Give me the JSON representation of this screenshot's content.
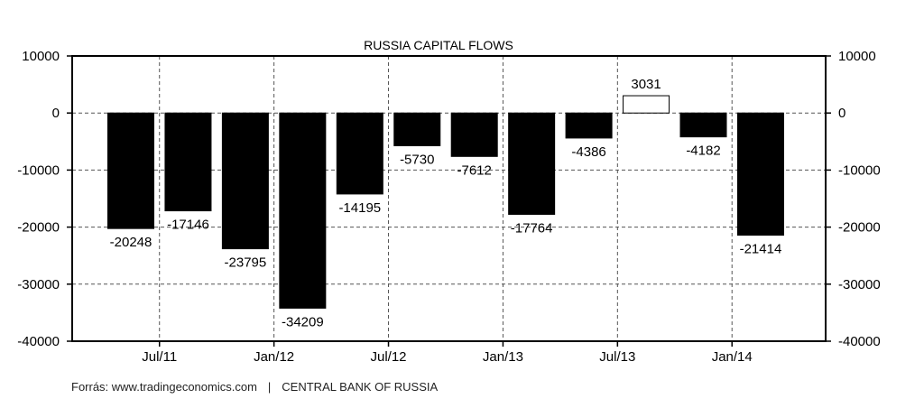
{
  "chart_data": {
    "type": "bar",
    "title": "RUSSIA CAPITAL FLOWS",
    "xlabel": "",
    "ylabel": "",
    "ylim": [
      -40000,
      10000
    ],
    "yticks": [
      "10000",
      "0",
      "-10000",
      "-20000",
      "-30000",
      "-40000"
    ],
    "ytick_values": [
      10000,
      0,
      -10000,
      -20000,
      -30000,
      -40000
    ],
    "xtick_labels": [
      "Jul/11",
      "Jan/12",
      "Jul/12",
      "Jan/13",
      "Jul/13",
      "Jan/14"
    ],
    "values": [
      -20248,
      -17146,
      -23795,
      -34209,
      -14195,
      -5730,
      -7612,
      -17764,
      -4386,
      3031,
      -4182,
      -21414
    ],
    "value_labels": [
      "-20248",
      "-17146",
      "-23795",
      "-34209",
      "-14195",
      "-5730",
      "-7612",
      "-17764",
      "-4386",
      "3031",
      "-4182",
      "-21414"
    ],
    "grid": true,
    "colors": {
      "negative": "#000000",
      "positive": "#ffffff",
      "grid": "#555555"
    }
  },
  "footer": {
    "source": "Forrás: www.tradingeconomics.com",
    "separator": "|",
    "provider": "CENTRAL BANK OF RUSSIA"
  }
}
